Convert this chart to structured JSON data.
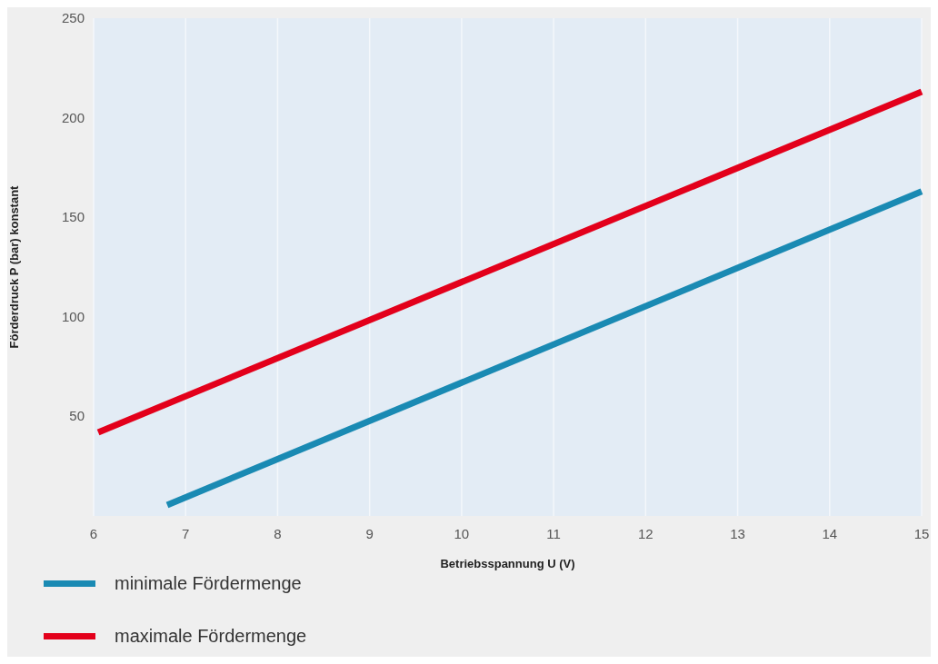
{
  "chart_data": {
    "type": "line",
    "xlabel": "Betriebsspannung U (V)",
    "ylabel": "Förderdruck P (bar) konstant",
    "xlim": [
      6,
      15
    ],
    "xticks": [
      6,
      7,
      8,
      9,
      10,
      11,
      12,
      13,
      14,
      15
    ],
    "ylim": [
      0,
      250
    ],
    "yticks": [
      50,
      100,
      150,
      200,
      250
    ],
    "grid": "x",
    "legend": "bottom",
    "marker": "none",
    "line_style": "solid",
    "series": [
      {
        "name": "minimale Fördermenge",
        "color": "#1a8ab3",
        "x": [
          6.8,
          15
        ],
        "values": [
          5.5,
          163
        ]
      },
      {
        "name": "maximale Fördermenge",
        "color": "#e3001b",
        "x": [
          6.05,
          15
        ],
        "values": [
          42,
          213
        ]
      }
    ]
  }
}
